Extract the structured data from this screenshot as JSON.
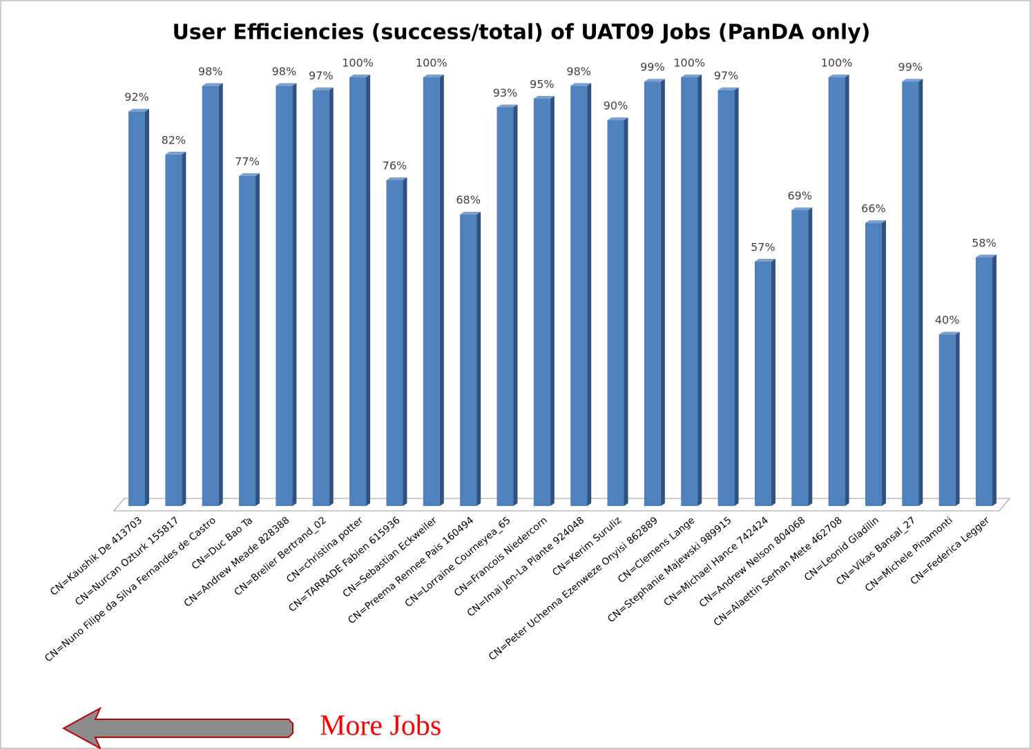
{
  "chart_data": {
    "type": "bar",
    "title": "User Efficiencies (success/total) of UAT09 Jobs (PanDA only)",
    "categories": [
      "CN=Kaushik De 413703",
      "CN=Nurcan Ozturk 155817",
      "CN=Nuno Filipe da Silva Fernandes de Castro",
      "CN=Duc Bao Ta",
      "CN=Andrew Meade 828388",
      "CN=Brelier Bertrand_02",
      "CN=christina potter",
      "CN=TARRADE Fabien 615936",
      "CN=Sebastian Eckweiler",
      "CN=Preema Rennee Pais 160494",
      "CN=Lorraine Courneyea_65",
      "CN=Francois Niedercorn",
      "CN=Imai Jen-La Plante 924048",
      "CN=Kerim Suruliz",
      "CN=Peter Uchenna Ezenweze Onyisi 862889",
      "CN=Clemens Lange",
      "CN=Stephanie Majewski 989915",
      "CN=Michael Hance 742424",
      "CN=Andrew Nelson 804068",
      "CN=Alaettin Serhan Mete 462708",
      "CN=Leonid Gladilin",
      "CN=Vikas Bansal_27",
      "CN=Michele Pinamonti",
      "CN=Federica Legger"
    ],
    "values": [
      92,
      82,
      98,
      77,
      98,
      97,
      100,
      76,
      100,
      68,
      93,
      95,
      98,
      90,
      99,
      100,
      97,
      57,
      69,
      100,
      66,
      99,
      40,
      58
    ],
    "value_labels": [
      "92%",
      "82%",
      "98%",
      "77%",
      "98%",
      "97%",
      "100%",
      "76%",
      "100%",
      "68%",
      "93%",
      "95%",
      "98%",
      "90%",
      "99%",
      "100%",
      "97%",
      "57%",
      "69%",
      "100%",
      "66%",
      "99%",
      "40%",
      "58%"
    ],
    "color": "#4f81bd"
  },
  "link": {
    "label": "More Jobs"
  }
}
